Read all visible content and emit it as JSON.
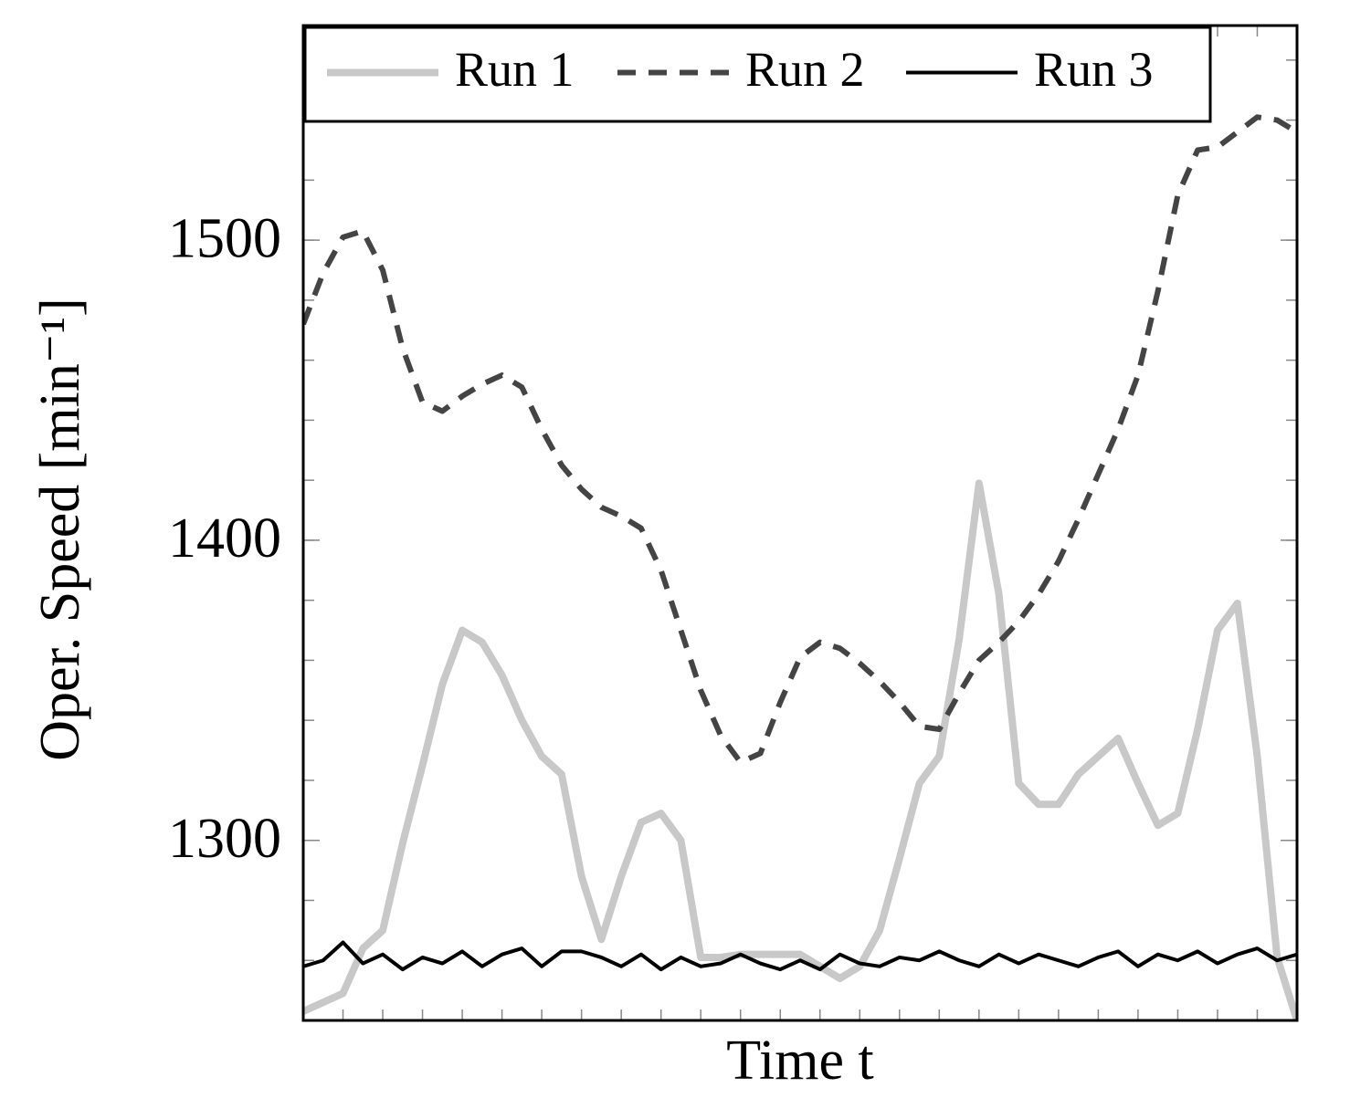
{
  "chart_data": {
    "type": "line",
    "xlabel": "Time t",
    "ylabel": "Oper. Speed [min⁻¹]",
    "x": [
      0,
      2,
      4,
      6,
      8,
      10,
      12,
      14,
      16,
      18,
      20,
      22,
      24,
      26,
      28,
      30,
      32,
      34,
      36,
      38,
      40,
      42,
      44,
      46,
      48,
      50,
      52,
      54,
      56,
      58,
      60,
      62,
      64,
      66,
      68,
      70,
      72,
      74,
      76,
      78,
      80,
      82,
      84,
      86,
      88,
      90,
      92,
      94,
      96,
      98,
      100
    ],
    "xlim": [
      0,
      100
    ],
    "xminorticks": [
      0,
      4,
      8,
      12,
      16,
      20,
      24,
      28,
      32,
      36,
      40,
      44,
      48,
      52,
      56,
      60,
      64,
      68,
      72,
      76,
      80,
      84,
      88,
      92,
      96,
      100
    ],
    "ylim": [
      1240,
      1571.5
    ],
    "yticks": [
      1300,
      1400,
      1500
    ],
    "yminorticks": [
      1240,
      1260,
      1280,
      1300,
      1320,
      1340,
      1360,
      1380,
      1400,
      1420,
      1440,
      1460,
      1480,
      1500,
      1520,
      1540,
      1560
    ],
    "legend": "top-left",
    "series": [
      {
        "name": "Run 1",
        "color": "#c8c8c8",
        "dash": "solid",
        "width": 8,
        "values": [
          1243,
          1246,
          1249,
          1264,
          1270,
          1299,
          1325,
          1352,
          1370,
          1366,
          1355,
          1340,
          1328,
          1322,
          1288,
          1267,
          1288,
          1306,
          1309,
          1300,
          1261,
          1261,
          1262,
          1262,
          1262,
          1262,
          1258,
          1254,
          1258,
          1270,
          1294,
          1319,
          1328,
          1367,
          1419,
          1382,
          1319,
          1312,
          1312,
          1322,
          1328,
          1334,
          1319,
          1305,
          1309,
          1337,
          1370,
          1379,
          1328,
          1261,
          1240
        ]
      },
      {
        "name": "Run 2",
        "color": "#444444",
        "dash": "dashed",
        "width": 6,
        "values": [
          1472,
          1489,
          1501,
          1503,
          1490,
          1464,
          1446,
          1443,
          1448,
          1452,
          1455,
          1451,
          1437,
          1425,
          1417,
          1411,
          1408,
          1404,
          1390,
          1370,
          1350,
          1335,
          1326,
          1329,
          1346,
          1361,
          1366,
          1364,
          1359,
          1353,
          1346,
          1338,
          1337,
          1349,
          1360,
          1366,
          1373,
          1382,
          1393,
          1407,
          1422,
          1437,
          1455,
          1483,
          1515,
          1530,
          1531,
          1536,
          1541,
          1540,
          1536
        ]
      },
      {
        "name": "Run 3",
        "color": "#000000",
        "dash": "solid",
        "width": 4,
        "values": [
          1258,
          1260,
          1266,
          1259,
          1262,
          1257,
          1261,
          1259,
          1263,
          1258,
          1262,
          1264,
          1258,
          1263,
          1263,
          1261,
          1258,
          1262,
          1257,
          1261,
          1258,
          1259,
          1262,
          1259,
          1257,
          1260,
          1257,
          1262,
          1259,
          1258,
          1261,
          1260,
          1263,
          1260,
          1258,
          1262,
          1259,
          1262,
          1260,
          1258,
          1261,
          1263,
          1258,
          1262,
          1260,
          1263,
          1259,
          1262,
          1264,
          1260,
          1262
        ]
      }
    ]
  }
}
